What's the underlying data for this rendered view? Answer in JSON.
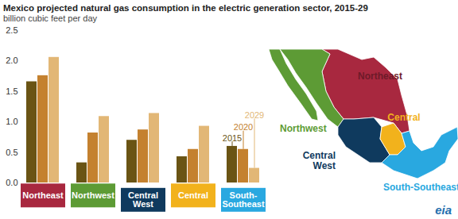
{
  "chart_data": {
    "type": "bar",
    "title": "Mexico projected natural gas consumption in the electric generation sector, 2015-29",
    "subtitle": "billion cubic feet per day",
    "source": "eia",
    "categories": [
      "Northeast",
      "Northwest",
      "Central West",
      "Central",
      "South-Southeast"
    ],
    "colors": [
      "#a8283f",
      "#5d9b35",
      "#0f3a5e",
      "#f2b21c",
      "#29a8e0"
    ],
    "series": [
      {
        "name": "2015",
        "color": "#6a5414",
        "values": [
          1.66,
          0.33,
          0.7,
          0.43,
          0.6
        ]
      },
      {
        "name": "2020",
        "color": "#c4812f",
        "values": [
          1.76,
          0.82,
          0.87,
          0.55,
          0.55
        ]
      },
      {
        "name": "2029",
        "color": "#e2b776",
        "values": [
          2.06,
          1.09,
          1.14,
          0.93,
          0.24
        ]
      }
    ],
    "ylim": [
      0,
      2.5
    ],
    "yticks": [
      {
        "value": 0,
        "label": "0.0"
      },
      0.5,
      {
        "value": 1,
        "label": "1.0"
      },
      1.5,
      {
        "value": 2,
        "label": "2.0"
      },
      2.5
    ],
    "grid": false
  }
}
